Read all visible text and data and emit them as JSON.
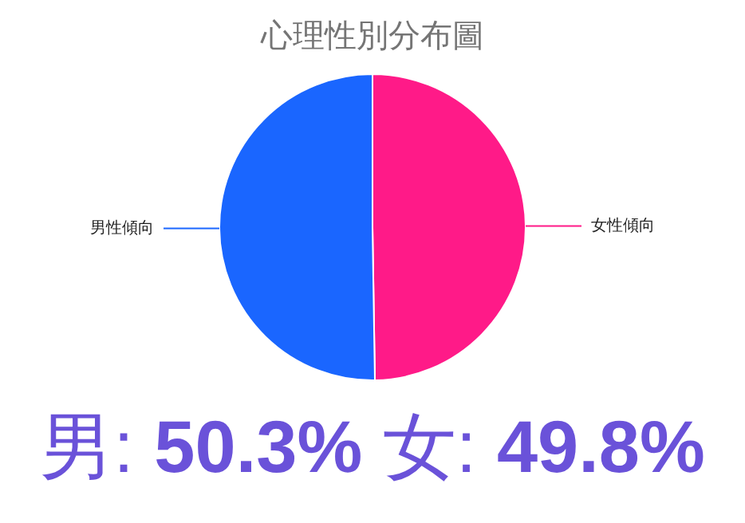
{
  "chart_data": {
    "type": "pie",
    "title": "心理性別分布圖",
    "categories": [
      "女性傾向",
      "男性傾向"
    ],
    "values": [
      49.8,
      50.3
    ],
    "colors": [
      "#ff1a88",
      "#1a66ff"
    ],
    "legend": false,
    "annotations": [
      "男: 50.3% 女: 49.8%"
    ]
  }
}
